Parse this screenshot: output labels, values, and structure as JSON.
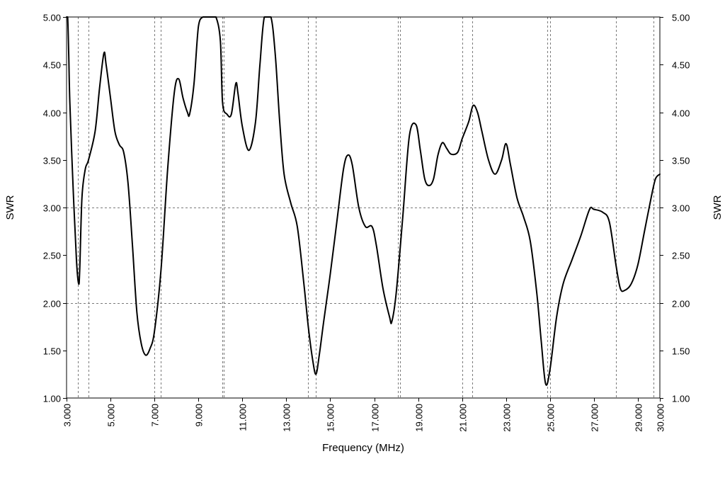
{
  "chart_data": {
    "type": "line",
    "xlabel": "Frequency (MHz)",
    "ylabel_left": "SWR",
    "ylabel_right": "SWR",
    "xlim": [
      3.0,
      30.0
    ],
    "ylim": [
      1.0,
      5.0
    ],
    "x_ticks": [
      3,
      5,
      7,
      9,
      11,
      13,
      15,
      17,
      19,
      21,
      23,
      25,
      27,
      29,
      30
    ],
    "x_tick_labels": [
      "3.000",
      "5.000",
      "7.000",
      "9.000",
      "11.000",
      "13.000",
      "15.000",
      "17.000",
      "19.000",
      "21.000",
      "23.000",
      "25.000",
      "27.000",
      "29.000",
      "30.000"
    ],
    "y_ticks": [
      1.0,
      1.5,
      2.0,
      2.5,
      3.0,
      3.5,
      4.0,
      4.5,
      5.0
    ],
    "y_tick_labels": [
      "1.00",
      "1.50",
      "2.00",
      "2.50",
      "3.00",
      "3.50",
      "4.00",
      "4.50",
      "5.00"
    ],
    "horizontal_grid": [
      2.0,
      3.0
    ],
    "band_markers_mhz": [
      3.5,
      4.0,
      7.0,
      7.3,
      10.1,
      10.15,
      14.0,
      14.35,
      18.068,
      18.168,
      21.0,
      21.45,
      24.89,
      24.99,
      28.0,
      29.7
    ],
    "grid": true,
    "series": [
      {
        "name": "",
        "color": "#000000",
        "x": [
          3.0,
          3.05,
          3.1,
          3.15,
          3.3,
          3.45,
          3.55,
          3.6,
          3.7,
          3.85,
          4.0,
          4.3,
          4.5,
          4.7,
          4.8,
          5.0,
          5.2,
          5.4,
          5.6,
          5.8,
          6.0,
          6.2,
          6.4,
          6.6,
          6.8,
          7.0,
          7.3,
          7.6,
          7.9,
          8.1,
          8.3,
          8.5,
          8.6,
          8.8,
          9.0,
          9.2,
          9.4,
          9.6,
          9.8,
          10.0,
          10.1,
          10.3,
          10.5,
          10.7,
          10.8,
          11.0,
          11.3,
          11.6,
          11.8,
          12.0,
          12.3,
          12.5,
          12.7,
          12.9,
          13.2,
          13.5,
          13.8,
          14.0,
          14.2,
          14.35,
          14.5,
          14.7,
          15.0,
          15.3,
          15.6,
          15.8,
          16.0,
          16.3,
          16.6,
          16.9,
          17.1,
          17.4,
          17.7,
          17.8,
          18.0,
          18.3,
          18.6,
          18.9,
          19.1,
          19.3,
          19.5,
          19.7,
          19.9,
          20.1,
          20.3,
          20.5,
          20.8,
          21.0,
          21.3,
          21.5,
          21.7,
          21.9,
          22.2,
          22.5,
          22.8,
          23.0,
          23.2,
          23.5,
          23.8,
          24.1,
          24.4,
          24.6,
          24.8,
          25.0,
          25.3,
          25.6,
          26.0,
          26.4,
          26.8,
          27.0,
          27.4,
          27.7,
          28.0,
          28.2,
          28.4,
          28.7,
          29.0,
          29.3,
          29.6,
          29.8,
          30.0
        ],
        "y": [
          5.0,
          5.0,
          4.6,
          4.1,
          3.2,
          2.45,
          2.2,
          2.35,
          3.1,
          3.4,
          3.5,
          3.8,
          4.25,
          4.62,
          4.5,
          4.15,
          3.8,
          3.66,
          3.58,
          3.25,
          2.6,
          1.9,
          1.57,
          1.45,
          1.52,
          1.7,
          2.35,
          3.4,
          4.2,
          4.35,
          4.15,
          4.0,
          3.98,
          4.3,
          4.9,
          5.0,
          5.0,
          5.0,
          5.0,
          4.75,
          4.1,
          3.98,
          3.98,
          4.3,
          4.2,
          3.85,
          3.6,
          3.9,
          4.5,
          5.0,
          5.0,
          4.6,
          3.9,
          3.35,
          3.05,
          2.8,
          2.2,
          1.75,
          1.4,
          1.25,
          1.45,
          1.8,
          2.3,
          2.85,
          3.4,
          3.55,
          3.45,
          3.0,
          2.8,
          2.8,
          2.6,
          2.15,
          1.85,
          1.8,
          2.1,
          2.9,
          3.75,
          3.87,
          3.6,
          3.3,
          3.23,
          3.3,
          3.55,
          3.68,
          3.62,
          3.56,
          3.58,
          3.72,
          3.9,
          4.07,
          4.0,
          3.8,
          3.5,
          3.35,
          3.5,
          3.67,
          3.45,
          3.1,
          2.9,
          2.65,
          2.1,
          1.6,
          1.15,
          1.3,
          1.85,
          2.2,
          2.45,
          2.7,
          2.98,
          2.98,
          2.95,
          2.85,
          2.4,
          2.15,
          2.13,
          2.2,
          2.4,
          2.75,
          3.1,
          3.3,
          3.35
        ]
      }
    ]
  }
}
